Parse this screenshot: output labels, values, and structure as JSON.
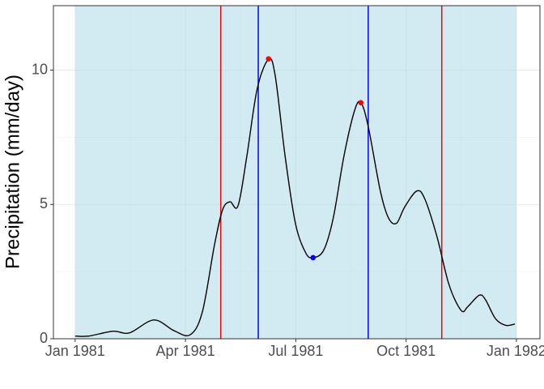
{
  "chart_data": {
    "type": "line",
    "ylabel": "Precipitation (mm/day)",
    "x": [
      0,
      0.37,
      1.03,
      1.48,
      2.14,
      2.69,
      3.13,
      3.46,
      3.79,
      4.01,
      4.21,
      4.43,
      4.67,
      4.95,
      5.26,
      5.44,
      5.71,
      5.99,
      6.27,
      6.47,
      6.76,
      7.02,
      7.31,
      7.6,
      7.77,
      7.97,
      8.3,
      8.52,
      8.74,
      8.96,
      9.29,
      9.51,
      9.84,
      10.17,
      10.5,
      10.68,
      10.99,
      11.16,
      11.43,
      11.71,
      11.96
    ],
    "values": [
      0.1,
      0.1,
      0.28,
      0.22,
      0.7,
      0.3,
      0.15,
      1.0,
      3.5,
      4.8,
      5.1,
      4.95,
      6.8,
      9.3,
      10.4,
      9.8,
      6.8,
      4.3,
      3.2,
      3.02,
      3.3,
      4.5,
      6.8,
      8.5,
      8.79,
      7.9,
      5.5,
      4.5,
      4.3,
      4.9,
      5.5,
      5.2,
      3.8,
      2.0,
      1.05,
      1.2,
      1.62,
      1.45,
      0.75,
      0.5,
      0.55
    ],
    "color": "#000000",
    "shade": {
      "x": [
        0,
        12
      ],
      "color": "#add8e6"
    },
    "vlines": [
      {
        "x": 3.96,
        "color": "#ff0000"
      },
      {
        "x": 4.98,
        "color": "#0000ff"
      },
      {
        "x": 7.97,
        "color": "#0000ff"
      },
      {
        "x": 9.97,
        "color": "#ff0000"
      }
    ],
    "points": [
      {
        "x": 5.26,
        "y": 10.42,
        "color": "#ff0000"
      },
      {
        "x": 6.47,
        "y": 3.02,
        "color": "#0000ff"
      },
      {
        "x": 7.77,
        "y": 8.79,
        "color": "#ff0000"
      }
    ],
    "xlim": [
      -0.59,
      12.64
    ],
    "ylim": [
      0,
      12.4
    ],
    "xticks": [
      {
        "value": 0,
        "label": "Jan 1981"
      },
      {
        "value": 3,
        "label": "Apr 1981"
      },
      {
        "value": 6,
        "label": "Jul 1981"
      },
      {
        "value": 9,
        "label": "Oct 1981"
      },
      {
        "value": 12,
        "label": "Jan 1982"
      }
    ],
    "yticks": [
      0,
      5,
      10
    ],
    "grid": true
  }
}
